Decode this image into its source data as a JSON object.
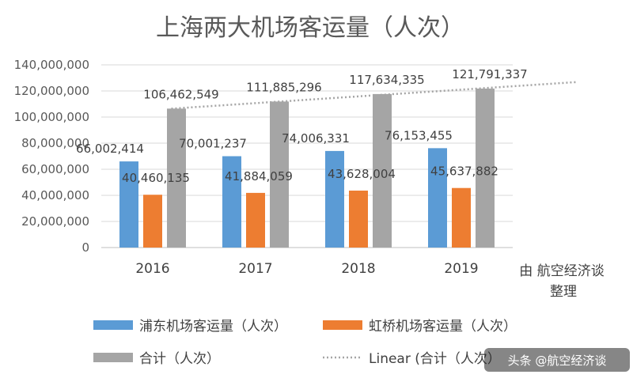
{
  "chart_data": {
    "type": "bar",
    "title": "上海两大机场客运量（人次）",
    "categories": [
      "2016",
      "2017",
      "2018",
      "2019"
    ],
    "series": [
      {
        "name": "浦东机场客运量（人次）",
        "color": "#5B9BD5",
        "values": [
          66002414,
          70001237,
          74006331,
          76153455
        ],
        "labels": [
          "66,002,414",
          "70,001,237",
          "74,006,331",
          "76,153,455"
        ]
      },
      {
        "name": "虹桥机场客运量（人次）",
        "color": "#ED7D31",
        "values": [
          40460135,
          41884059,
          43628004,
          45637882
        ],
        "labels": [
          "40,460,135",
          "41,884,059",
          "43,628,004",
          "45,637,882"
        ]
      },
      {
        "name": "合计（人次）",
        "color": "#A5A5A5",
        "values": [
          106462549,
          111885296,
          117634335,
          121791337
        ],
        "labels": [
          "106,462,549",
          "111,885,296",
          "117,634,335",
          "121,791,337"
        ]
      }
    ],
    "trendline": {
      "name": "Linear (合计（人次）)",
      "type": "linear",
      "of_series": "合计（人次）",
      "color": "#A5A5A5"
    },
    "ylim": [
      0,
      140000000
    ],
    "yticks": [
      0,
      20000000,
      40000000,
      60000000,
      80000000,
      100000000,
      120000000,
      140000000
    ],
    "ytick_labels": [
      "0",
      "20,000,000",
      "40,000,000",
      "60,000,000",
      "80,000,000",
      "100,000,000",
      "120,000,000",
      "140,000,000"
    ],
    "grid": true,
    "legend_position": "bottom",
    "xlabel": "",
    "ylabel": ""
  },
  "source_note_lines": [
    "由 航空经济谈",
    "整理"
  ],
  "legend": {
    "items": [
      "浦东机场客运量（人次）",
      "虹桥机场客运量（人次）",
      "合计（人次）",
      "Linear (合计（人次）"
    ]
  },
  "watermark": {
    "text": "头条 @航空经济谈"
  }
}
